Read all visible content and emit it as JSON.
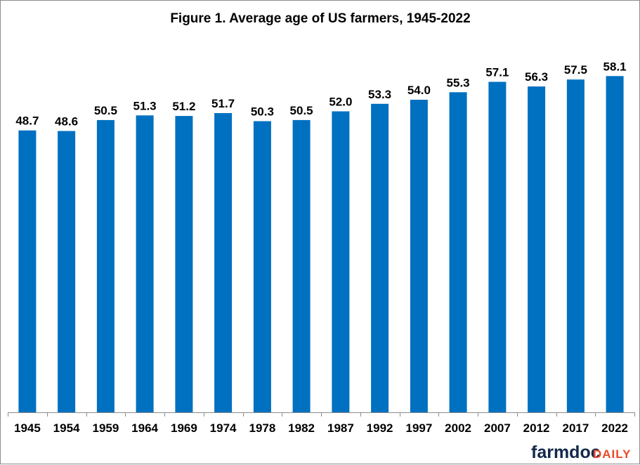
{
  "chart_data": {
    "type": "bar",
    "title": "Figure  1.  Average  age  of  US  farmers,  1945-2022",
    "xlabel": "",
    "ylabel": "",
    "ylim": [
      0,
      60
    ],
    "grid": false,
    "legend": "none",
    "categories": [
      "1945",
      "1954",
      "1959",
      "1964",
      "1969",
      "1974",
      "1978",
      "1982",
      "1987",
      "1992",
      "1997",
      "2002",
      "2007",
      "2012",
      "2017",
      "2022"
    ],
    "values": [
      48.7,
      48.6,
      50.5,
      51.3,
      51.2,
      51.7,
      50.3,
      50.5,
      52.0,
      53.3,
      54.0,
      55.3,
      57.1,
      56.3,
      57.5,
      58.1
    ],
    "data_labels": [
      "48.7",
      "48.6",
      "50.5",
      "51.3",
      "51.2",
      "51.7",
      "50.3",
      "50.5",
      "52.0",
      "53.3",
      "54.0",
      "55.3",
      "57.1",
      "56.3",
      "57.5",
      "58.1"
    ],
    "bar_color": "#0070c0"
  },
  "branding": {
    "part1": "farmdoc",
    "part2": "DAILY",
    "color_primary": "#13294b",
    "color_accent": "#e84a27"
  }
}
